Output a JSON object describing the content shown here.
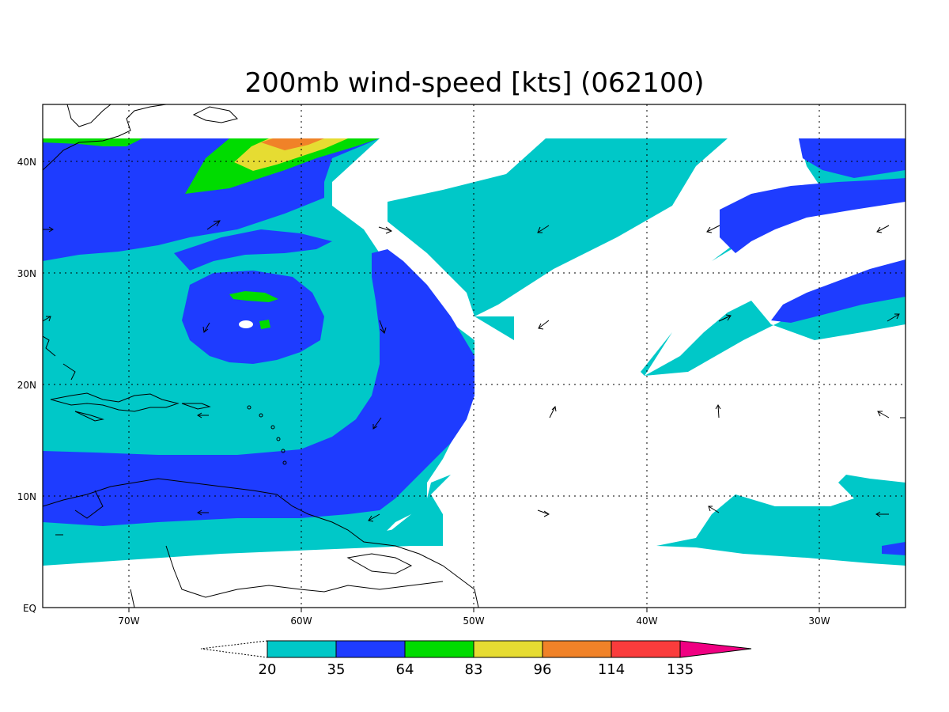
{
  "title": "200mb wind-speed [kts] (062100)",
  "colors": {
    "c20": "#00c8c8",
    "c35": "#1e3cff",
    "c64": "#00dc00",
    "c83": "#e6dc32",
    "c96": "#f08228",
    "c114": "#fa3c3c",
    "c135": "#f00082",
    "land": "#000000",
    "grid": "#000000"
  },
  "axes": {
    "x_ticks": [
      "70W",
      "60W",
      "50W",
      "40W",
      "30W"
    ],
    "y_ticks": [
      "EQ",
      "10N",
      "20N",
      "30N",
      "40N"
    ]
  },
  "colorbar": {
    "labels": [
      "20",
      "35",
      "64",
      "83",
      "96",
      "114",
      "135"
    ]
  }
}
